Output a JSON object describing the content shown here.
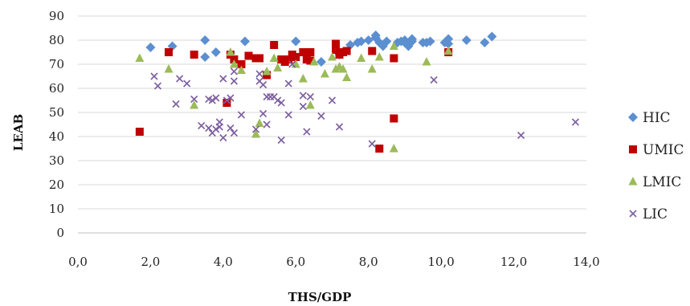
{
  "chart_data": {
    "type": "scatter",
    "title": "",
    "xlabel": "THS/GDP",
    "ylabel": "LEAB",
    "xlim": [
      0,
      14
    ],
    "ylim": [
      0,
      90
    ],
    "x_ticks": [
      "0,0",
      "2,0",
      "4,0",
      "6,0",
      "8,0",
      "10,0",
      "12,0",
      "14,0"
    ],
    "y_ticks": [
      "0",
      "10",
      "20",
      "30",
      "40",
      "50",
      "60",
      "70",
      "80",
      "90"
    ],
    "grid": "horizontal",
    "legend_position": "right",
    "series": [
      {
        "name": "HIC",
        "marker": "diamond",
        "color": "#5b8fd0",
        "points": [
          [
            2.0,
            77
          ],
          [
            2.6,
            77.5
          ],
          [
            3.5,
            80
          ],
          [
            3.5,
            73
          ],
          [
            3.8,
            75
          ],
          [
            4.6,
            79.5
          ],
          [
            6.0,
            79.5
          ],
          [
            6.7,
            71
          ],
          [
            7.2,
            74
          ],
          [
            7.5,
            78
          ],
          [
            7.7,
            79
          ],
          [
            7.8,
            79.5
          ],
          [
            8.0,
            80
          ],
          [
            8.2,
            81
          ],
          [
            8.2,
            82
          ],
          [
            8.3,
            79
          ],
          [
            8.4,
            77.5
          ],
          [
            8.5,
            79.5
          ],
          [
            8.8,
            79
          ],
          [
            8.9,
            79.5
          ],
          [
            9.0,
            80
          ],
          [
            9.0,
            79
          ],
          [
            9.1,
            77.5
          ],
          [
            9.1,
            78.5
          ],
          [
            9.2,
            80.5
          ],
          [
            9.2,
            79.5
          ],
          [
            9.5,
            79
          ],
          [
            9.6,
            79
          ],
          [
            9.7,
            79.5
          ],
          [
            10.1,
            79
          ],
          [
            10.2,
            80.5
          ],
          [
            10.2,
            78.5
          ],
          [
            10.7,
            80
          ],
          [
            11.2,
            79
          ],
          [
            11.4,
            81.5
          ]
        ]
      },
      {
        "name": "UMIC",
        "marker": "square",
        "color": "#c00000",
        "points": [
          [
            1.7,
            42
          ],
          [
            2.5,
            75
          ],
          [
            3.2,
            74
          ],
          [
            4.1,
            54
          ],
          [
            4.2,
            74
          ],
          [
            4.3,
            72
          ],
          [
            4.5,
            70
          ],
          [
            4.7,
            73.5
          ],
          [
            4.9,
            72.5
          ],
          [
            5.0,
            72.5
          ],
          [
            5.2,
            65.5
          ],
          [
            5.4,
            78
          ],
          [
            5.6,
            72
          ],
          [
            5.7,
            71
          ],
          [
            5.8,
            72
          ],
          [
            5.9,
            74
          ],
          [
            6.0,
            73
          ],
          [
            6.2,
            75
          ],
          [
            6.3,
            72
          ],
          [
            6.4,
            75
          ],
          [
            6.4,
            71.5
          ],
          [
            7.1,
            78.5
          ],
          [
            7.1,
            76
          ],
          [
            7.2,
            74
          ],
          [
            7.3,
            75
          ],
          [
            7.4,
            75.5
          ],
          [
            8.1,
            75.5
          ],
          [
            8.3,
            35
          ],
          [
            8.7,
            72.5
          ],
          [
            8.7,
            47.5
          ],
          [
            10.2,
            75
          ]
        ]
      },
      {
        "name": "LMIC",
        "marker": "triangle",
        "color": "#9bbb59",
        "points": [
          [
            1.7,
            72.5
          ],
          [
            2.5,
            68
          ],
          [
            3.2,
            53
          ],
          [
            4.2,
            75
          ],
          [
            4.3,
            70
          ],
          [
            4.5,
            67.5
          ],
          [
            4.9,
            41
          ],
          [
            5.0,
            45.5
          ],
          [
            5.2,
            67
          ],
          [
            5.4,
            72.5
          ],
          [
            5.5,
            68.5
          ],
          [
            6.0,
            70
          ],
          [
            6.2,
            64
          ],
          [
            6.4,
            53
          ],
          [
            6.5,
            71
          ],
          [
            6.8,
            66
          ],
          [
            7.0,
            73
          ],
          [
            7.1,
            68
          ],
          [
            7.2,
            69
          ],
          [
            7.3,
            68
          ],
          [
            7.4,
            64.5
          ],
          [
            7.8,
            72.5
          ],
          [
            8.1,
            68
          ],
          [
            8.3,
            73
          ],
          [
            8.7,
            35
          ],
          [
            8.7,
            77.5
          ],
          [
            9.6,
            71
          ],
          [
            10.2,
            75.5
          ]
        ]
      },
      {
        "name": "LIC",
        "marker": "x",
        "color": "#7d5fa0",
        "points": [
          [
            2.1,
            65
          ],
          [
            2.2,
            61
          ],
          [
            2.7,
            53.5
          ],
          [
            2.8,
            64
          ],
          [
            3.0,
            62
          ],
          [
            3.2,
            55.5
          ],
          [
            3.4,
            44.5
          ],
          [
            3.6,
            55.5
          ],
          [
            3.6,
            43.5
          ],
          [
            3.7,
            41.5
          ],
          [
            3.7,
            55
          ],
          [
            3.8,
            56
          ],
          [
            3.8,
            43
          ],
          [
            3.9,
            46
          ],
          [
            3.9,
            44
          ],
          [
            4.0,
            64
          ],
          [
            4.0,
            39.5
          ],
          [
            4.1,
            55
          ],
          [
            4.2,
            56
          ],
          [
            4.2,
            43.5
          ],
          [
            4.3,
            63
          ],
          [
            4.3,
            41.5
          ],
          [
            4.3,
            67
          ],
          [
            4.5,
            49
          ],
          [
            4.9,
            43
          ],
          [
            5.0,
            63
          ],
          [
            5.0,
            66
          ],
          [
            5.1,
            61.5
          ],
          [
            5.1,
            49.5
          ],
          [
            5.2,
            45
          ],
          [
            5.2,
            56.5
          ],
          [
            5.3,
            56.5
          ],
          [
            5.4,
            56.5
          ],
          [
            5.5,
            55
          ],
          [
            5.6,
            38.5
          ],
          [
            5.6,
            54
          ],
          [
            5.8,
            62
          ],
          [
            5.8,
            49
          ],
          [
            5.9,
            70
          ],
          [
            6.2,
            57
          ],
          [
            6.2,
            52.5
          ],
          [
            6.3,
            42
          ],
          [
            6.4,
            56.5
          ],
          [
            6.7,
            48.5
          ],
          [
            7.0,
            55
          ],
          [
            7.2,
            44
          ],
          [
            8.1,
            37
          ],
          [
            9.8,
            63.5
          ],
          [
            12.2,
            40.5
          ],
          [
            13.7,
            46
          ]
        ]
      }
    ]
  }
}
